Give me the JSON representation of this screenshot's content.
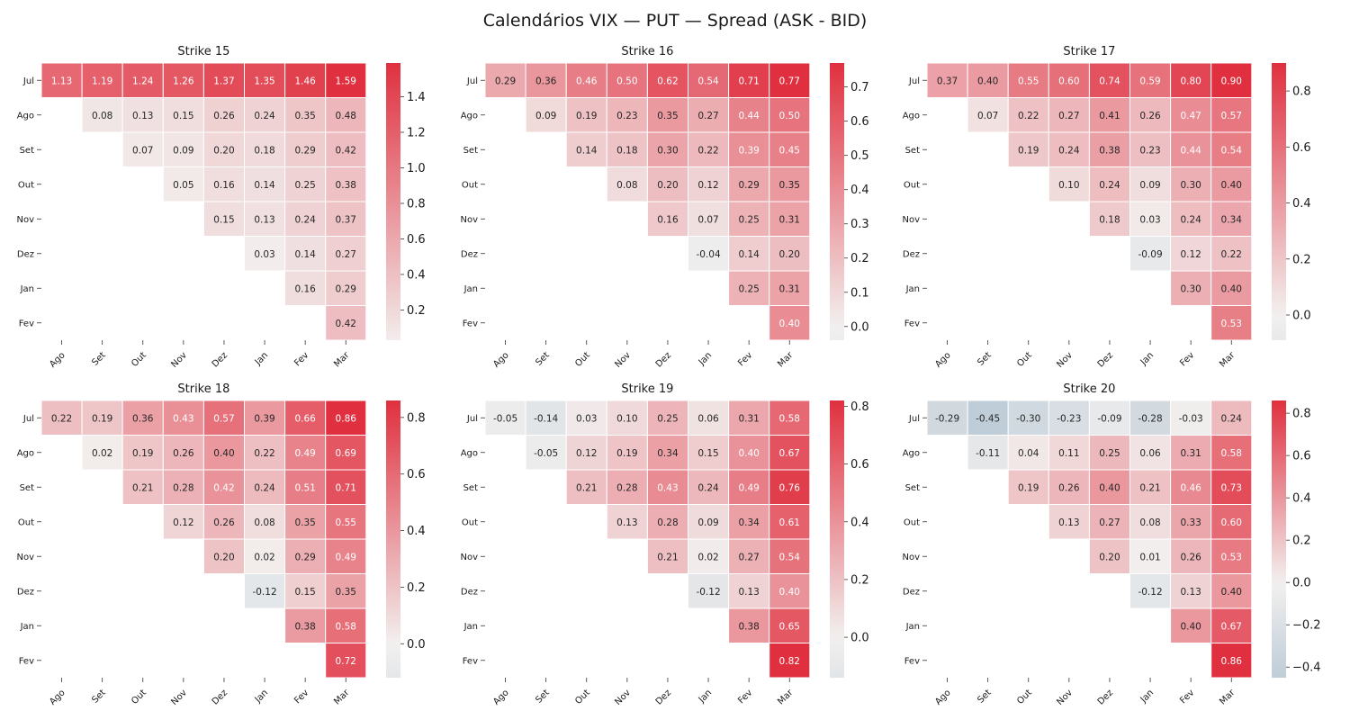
{
  "figure_title": "Calendários VIX — PUT — Spread (ASK - BID)",
  "colors": {
    "negative": "#8fadc1",
    "neutral": "#f2f0ef",
    "positive": "#e0303f",
    "cell_border": "#ffffff"
  },
  "chart_data": [
    {
      "type": "heatmap",
      "title": "Strike 15",
      "rows": [
        "Jul",
        "Ago",
        "Set",
        "Out",
        "Nov",
        "Dez",
        "Jan",
        "Fev"
      ],
      "columns": [
        "Ago",
        "Set",
        "Out",
        "Nov",
        "Dez",
        "Jan",
        "Fev",
        "Mar"
      ],
      "values": [
        [
          1.13,
          1.19,
          1.24,
          1.26,
          1.37,
          1.35,
          1.46,
          1.59
        ],
        [
          null,
          0.08,
          0.13,
          0.15,
          0.26,
          0.24,
          0.35,
          0.48
        ],
        [
          null,
          null,
          0.07,
          0.09,
          0.2,
          0.18,
          0.29,
          0.42
        ],
        [
          null,
          null,
          null,
          0.05,
          0.16,
          0.14,
          0.25,
          0.38
        ],
        [
          null,
          null,
          null,
          null,
          0.15,
          0.13,
          0.24,
          0.37
        ],
        [
          null,
          null,
          null,
          null,
          null,
          0.03,
          0.14,
          0.27
        ],
        [
          null,
          null,
          null,
          null,
          null,
          null,
          0.16,
          0.29
        ],
        [
          null,
          null,
          null,
          null,
          null,
          null,
          null,
          0.42
        ]
      ],
      "value_range": [
        0.03,
        1.59
      ],
      "colorbar_ticks": [
        0.2,
        0.4,
        0.6,
        0.8,
        1.0,
        1.2,
        1.4
      ],
      "colorbar_tick_labels": [
        "0.2",
        "0.4",
        "0.6",
        "0.8",
        "1.0",
        "1.2",
        "1.4"
      ]
    },
    {
      "type": "heatmap",
      "title": "Strike 16",
      "rows": [
        "Jul",
        "Ago",
        "Set",
        "Out",
        "Nov",
        "Dez",
        "Jan",
        "Fev"
      ],
      "columns": [
        "Ago",
        "Set",
        "Out",
        "Nov",
        "Dez",
        "Jan",
        "Fev",
        "Mar"
      ],
      "values": [
        [
          0.29,
          0.36,
          0.46,
          0.5,
          0.62,
          0.54,
          0.71,
          0.77
        ],
        [
          null,
          0.09,
          0.19,
          0.23,
          0.35,
          0.27,
          0.44,
          0.5
        ],
        [
          null,
          null,
          0.14,
          0.18,
          0.3,
          0.22,
          0.39,
          0.45
        ],
        [
          null,
          null,
          null,
          0.08,
          0.2,
          0.12,
          0.29,
          0.35
        ],
        [
          null,
          null,
          null,
          null,
          0.16,
          0.07,
          0.25,
          0.31
        ],
        [
          null,
          null,
          null,
          null,
          null,
          -0.04,
          0.14,
          0.2
        ],
        [
          null,
          null,
          null,
          null,
          null,
          null,
          0.25,
          0.31
        ],
        [
          null,
          null,
          null,
          null,
          null,
          null,
          null,
          0.4
        ]
      ],
      "value_range": [
        -0.04,
        0.77
      ],
      "colorbar_ticks": [
        0.0,
        0.1,
        0.2,
        0.3,
        0.4,
        0.5,
        0.6,
        0.7
      ],
      "colorbar_tick_labels": [
        "0.0",
        "0.1",
        "0.2",
        "0.3",
        "0.4",
        "0.5",
        "0.6",
        "0.7"
      ]
    },
    {
      "type": "heatmap",
      "title": "Strike 17",
      "rows": [
        "Jul",
        "Ago",
        "Set",
        "Out",
        "Nov",
        "Dez",
        "Jan",
        "Fev"
      ],
      "columns": [
        "Ago",
        "Set",
        "Out",
        "Nov",
        "Dez",
        "Jan",
        "Fev",
        "Mar"
      ],
      "values": [
        [
          0.37,
          0.4,
          0.55,
          0.6,
          0.74,
          0.59,
          0.8,
          0.9
        ],
        [
          null,
          0.07,
          0.22,
          0.27,
          0.41,
          0.26,
          0.47,
          0.57
        ],
        [
          null,
          null,
          0.19,
          0.24,
          0.38,
          0.23,
          0.44,
          0.54
        ],
        [
          null,
          null,
          null,
          0.1,
          0.24,
          0.09,
          0.3,
          0.4
        ],
        [
          null,
          null,
          null,
          null,
          0.18,
          0.03,
          0.24,
          0.34
        ],
        [
          null,
          null,
          null,
          null,
          null,
          -0.09,
          0.12,
          0.22
        ],
        [
          null,
          null,
          null,
          null,
          null,
          null,
          0.3,
          0.4
        ],
        [
          null,
          null,
          null,
          null,
          null,
          null,
          null,
          0.53
        ]
      ],
      "value_range": [
        -0.09,
        0.9
      ],
      "colorbar_ticks": [
        0.0,
        0.2,
        0.4,
        0.6,
        0.8
      ],
      "colorbar_tick_labels": [
        "0.0",
        "0.2",
        "0.4",
        "0.6",
        "0.8"
      ]
    },
    {
      "type": "heatmap",
      "title": "Strike 18",
      "rows": [
        "Jul",
        "Ago",
        "Set",
        "Out",
        "Nov",
        "Dez",
        "Jan",
        "Fev"
      ],
      "columns": [
        "Ago",
        "Set",
        "Out",
        "Nov",
        "Dez",
        "Jan",
        "Fev",
        "Mar"
      ],
      "values": [
        [
          0.22,
          0.19,
          0.36,
          0.43,
          0.57,
          0.39,
          0.66,
          0.86
        ],
        [
          null,
          0.02,
          0.19,
          0.26,
          0.4,
          0.22,
          0.49,
          0.69
        ],
        [
          null,
          null,
          0.21,
          0.28,
          0.42,
          0.24,
          0.51,
          0.71
        ],
        [
          null,
          null,
          null,
          0.12,
          0.26,
          0.08,
          0.35,
          0.55
        ],
        [
          null,
          null,
          null,
          null,
          0.2,
          0.02,
          0.29,
          0.49
        ],
        [
          null,
          null,
          null,
          null,
          null,
          -0.12,
          0.15,
          0.35
        ],
        [
          null,
          null,
          null,
          null,
          null,
          null,
          0.38,
          0.58
        ],
        [
          null,
          null,
          null,
          null,
          null,
          null,
          null,
          0.72
        ]
      ],
      "value_range": [
        -0.12,
        0.86
      ],
      "colorbar_ticks": [
        0.0,
        0.2,
        0.4,
        0.6,
        0.8
      ],
      "colorbar_tick_labels": [
        "0.0",
        "0.2",
        "0.4",
        "0.6",
        "0.8"
      ]
    },
    {
      "type": "heatmap",
      "title": "Strike 19",
      "rows": [
        "Jul",
        "Ago",
        "Set",
        "Out",
        "Nov",
        "Dez",
        "Jan",
        "Fev"
      ],
      "columns": [
        "Ago",
        "Set",
        "Out",
        "Nov",
        "Dez",
        "Jan",
        "Fev",
        "Mar"
      ],
      "values": [
        [
          -0.05,
          -0.14,
          0.03,
          0.1,
          0.25,
          0.06,
          0.31,
          0.58
        ],
        [
          null,
          -0.05,
          0.12,
          0.19,
          0.34,
          0.15,
          0.4,
          0.67
        ],
        [
          null,
          null,
          0.21,
          0.28,
          0.43,
          0.24,
          0.49,
          0.76
        ],
        [
          null,
          null,
          null,
          0.13,
          0.28,
          0.09,
          0.34,
          0.61
        ],
        [
          null,
          null,
          null,
          null,
          0.21,
          0.02,
          0.27,
          0.54
        ],
        [
          null,
          null,
          null,
          null,
          null,
          -0.12,
          0.13,
          0.4
        ],
        [
          null,
          null,
          null,
          null,
          null,
          null,
          0.38,
          0.65
        ],
        [
          null,
          null,
          null,
          null,
          null,
          null,
          null,
          0.82
        ]
      ],
      "value_range": [
        -0.14,
        0.82
      ],
      "colorbar_ticks": [
        0.0,
        0.2,
        0.4,
        0.6,
        0.8
      ],
      "colorbar_tick_labels": [
        "0.0",
        "0.2",
        "0.4",
        "0.6",
        "0.8"
      ]
    },
    {
      "type": "heatmap",
      "title": "Strike 20",
      "rows": [
        "Jul",
        "Ago",
        "Set",
        "Out",
        "Nov",
        "Dez",
        "Jan",
        "Fev"
      ],
      "columns": [
        "Ago",
        "Set",
        "Out",
        "Nov",
        "Dez",
        "Jan",
        "Fev",
        "Mar"
      ],
      "values": [
        [
          -0.29,
          -0.45,
          -0.3,
          -0.23,
          -0.09,
          -0.28,
          -0.03,
          0.24
        ],
        [
          null,
          -0.11,
          0.04,
          0.11,
          0.25,
          0.06,
          0.31,
          0.58
        ],
        [
          null,
          null,
          0.19,
          0.26,
          0.4,
          0.21,
          0.46,
          0.73
        ],
        [
          null,
          null,
          null,
          0.13,
          0.27,
          0.08,
          0.33,
          0.6
        ],
        [
          null,
          null,
          null,
          null,
          0.2,
          0.01,
          0.26,
          0.53
        ],
        [
          null,
          null,
          null,
          null,
          null,
          -0.12,
          0.13,
          0.4
        ],
        [
          null,
          null,
          null,
          null,
          null,
          null,
          0.4,
          0.67
        ],
        [
          null,
          null,
          null,
          null,
          null,
          null,
          null,
          0.86
        ]
      ],
      "value_range": [
        -0.45,
        0.86
      ],
      "colorbar_ticks": [
        -0.4,
        -0.2,
        0.0,
        0.2,
        0.4,
        0.6,
        0.8
      ],
      "colorbar_tick_labels": [
        "−0.4",
        "−0.2",
        "0.0",
        "0.2",
        "0.4",
        "0.6",
        "0.8"
      ]
    }
  ]
}
